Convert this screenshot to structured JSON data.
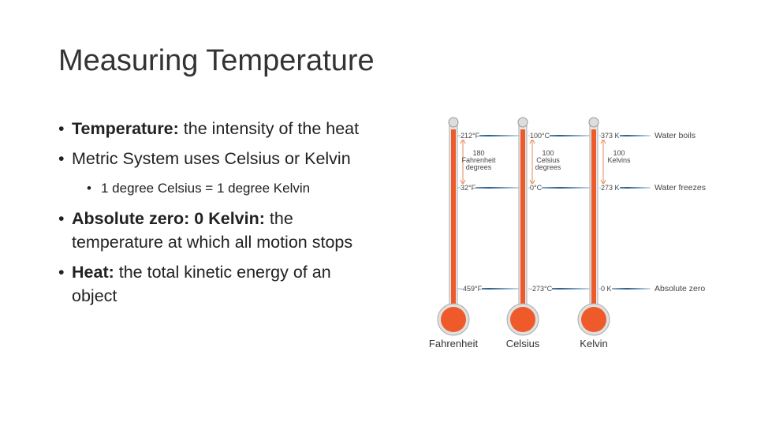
{
  "title": "Measuring Temperature",
  "bullets": [
    {
      "term": "Temperature:",
      "text": "the intensity of the heat"
    },
    {
      "text": "Metric System uses Celsius or Kelvin"
    },
    {
      "text": "1 degree Celsius = 1 degree Kelvin"
    },
    {
      "term": "Absolute zero: 0 Kelvin:",
      "text": "the temperature at which all motion stops"
    },
    {
      "term": "Heat:",
      "text": "the total kinetic energy of an object"
    }
  ],
  "diagram": {
    "thermometers": [
      {
        "name": "Fahrenheit",
        "boil": "212°F",
        "freeze": "32°F",
        "zero": "-459°F",
        "span": [
          "180",
          "Fahrenheit",
          "degrees"
        ]
      },
      {
        "name": "Celsius",
        "boil": "100°C",
        "freeze": "0°C",
        "zero": "-273°C",
        "span": [
          "100",
          "Celsius",
          "degrees"
        ]
      },
      {
        "name": "Kelvin",
        "boil": "373 K",
        "freeze": "273 K",
        "zero": "0 K",
        "span": [
          "100",
          "Kelvins"
        ]
      }
    ],
    "levels": [
      "Water boils",
      "Water freezes",
      "Absolute zero"
    ]
  }
}
